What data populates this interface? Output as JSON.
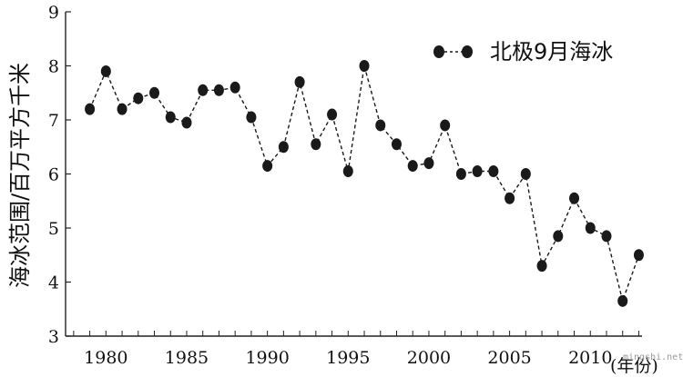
{
  "chart_data": {
    "type": "line",
    "ylabel": "海冰范围/百万平方千米",
    "xlabel": "(年份)",
    "xlim": [
      1977.5,
      2013.2
    ],
    "ylim": [
      3,
      9
    ],
    "x_ticks": [
      1980,
      1985,
      1990,
      1995,
      2000,
      2005,
      2010
    ],
    "y_ticks": [
      3,
      4,
      5,
      6,
      7,
      8,
      9
    ],
    "grid": false,
    "legend_position": "top-right",
    "series": [
      {
        "name": "北极9月海冰",
        "line_style": "dashed",
        "marker": "circle",
        "color": "#1a1a1a",
        "x": [
          1979,
          1980,
          1981,
          1982,
          1983,
          1984,
          1985,
          1986,
          1987,
          1988,
          1989,
          1990,
          1991,
          1992,
          1993,
          1994,
          1995,
          1996,
          1997,
          1998,
          1999,
          2000,
          2001,
          2002,
          2003,
          2004,
          2005,
          2006,
          2007,
          2008,
          2009,
          2010,
          2011,
          2012,
          2013
        ],
        "y": [
          7.2,
          7.9,
          7.2,
          7.4,
          7.5,
          7.05,
          6.95,
          7.55,
          7.55,
          7.6,
          7.05,
          6.15,
          6.5,
          7.7,
          6.55,
          7.1,
          6.05,
          8.0,
          6.9,
          6.55,
          6.15,
          6.2,
          6.9,
          6.0,
          6.05,
          6.05,
          5.55,
          6.0,
          4.3,
          4.85,
          5.55,
          5.0,
          4.85,
          3.65,
          4.5
        ]
      }
    ]
  },
  "watermark": "mingshi.net"
}
